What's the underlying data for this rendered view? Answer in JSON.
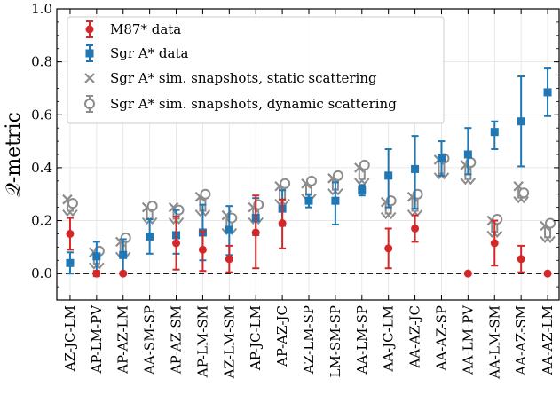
{
  "chart_data": {
    "type": "scatter",
    "ylabel": "𝒬-metric",
    "ylim": [
      -0.1,
      1.0
    ],
    "yticks": [
      0.0,
      0.2,
      0.4,
      0.6,
      0.8,
      1.0
    ],
    "ytick_labels": [
      "0.0",
      "0.2",
      "0.4",
      "0.6",
      "0.8",
      "1.0"
    ],
    "grid": true,
    "reference_line": 0.0,
    "legend_position": "top-left",
    "categories": [
      "AZ-JC-LM",
      "AP-LM-PV",
      "AP-AZ-LM",
      "AA-SM-SP",
      "AP-AZ-SM",
      "AP-LM-SM",
      "AZ-LM-SM",
      "AP-JC-LM",
      "AP-AZ-JC",
      "AZ-LM-SP",
      "LM-SM-SP",
      "AA-LM-SP",
      "AA-JC-LM",
      "AA-AZ-JC",
      "AA-AZ-SP",
      "AA-LM-PV",
      "AA-LM-SM",
      "AA-AZ-SM",
      "AA-AZ-LM"
    ],
    "colors": {
      "m87": "#d62728",
      "sgra": "#1f77b4",
      "sim": "#8c8c8c"
    },
    "series": [
      {
        "name": "M87* data",
        "marker": "circle",
        "values": [
          0.15,
          0.0,
          0.0,
          null,
          0.115,
          0.09,
          0.055,
          0.155,
          0.19,
          null,
          null,
          null,
          0.095,
          0.17,
          null,
          0.0,
          0.115,
          0.055,
          0.0
        ],
        "err_low": [
          0.06,
          0.01,
          0.0,
          null,
          0.1,
          0.08,
          0.05,
          0.135,
          0.095,
          null,
          null,
          null,
          0.075,
          0.05,
          null,
          0.0,
          0.085,
          0.05,
          0.0
        ],
        "err_high": [
          0.06,
          0.01,
          0.0,
          null,
          0.1,
          0.07,
          0.05,
          0.14,
          0.09,
          null,
          null,
          null,
          0.075,
          0.05,
          null,
          0.0,
          0.085,
          0.05,
          0.0
        ]
      },
      {
        "name": "Sgr A* data",
        "marker": "square",
        "values": [
          0.04,
          0.065,
          0.07,
          0.14,
          0.145,
          0.155,
          0.165,
          0.21,
          0.245,
          0.275,
          0.275,
          0.315,
          0.37,
          0.395,
          0.435,
          0.45,
          0.535,
          0.575,
          0.685
        ],
        "err_low": [
          0.04,
          0.06,
          0.065,
          0.065,
          0.07,
          0.105,
          0.095,
          0.065,
          0.065,
          0.025,
          0.09,
          0.02,
          0.12,
          0.15,
          0.065,
          0.075,
          0.065,
          0.17,
          0.09
        ],
        "err_high": [
          0.04,
          0.055,
          0.06,
          0.065,
          0.095,
          0.105,
          0.09,
          0.075,
          0.07,
          0.025,
          0.07,
          0.02,
          0.1,
          0.125,
          0.065,
          0.1,
          0.04,
          0.17,
          0.09
        ]
      },
      {
        "name": "Sgr A* sim. snapshots, static scattering",
        "marker": "x",
        "values": [
          0.28,
          0.08,
          0.12,
          0.25,
          0.25,
          0.29,
          0.22,
          0.25,
          0.33,
          0.34,
          0.36,
          0.4,
          0.27,
          0.29,
          0.43,
          0.41,
          0.2,
          0.33,
          0.18
        ],
        "arrow_to": [
          0.22,
          0.02,
          0.06,
          0.19,
          0.19,
          0.22,
          0.15,
          0.19,
          0.26,
          0.28,
          0.3,
          0.34,
          0.21,
          0.22,
          0.36,
          0.34,
          0.14,
          0.27,
          0.12
        ]
      },
      {
        "name": "Sgr A* sim. snapshots, dynamic scattering",
        "marker": "circle-open",
        "values": [
          0.265,
          0.085,
          0.135,
          0.255,
          0.24,
          0.3,
          0.21,
          0.26,
          0.34,
          0.35,
          0.37,
          0.41,
          0.275,
          0.3,
          0.435,
          0.42,
          0.205,
          0.305,
          0.19
        ]
      }
    ]
  }
}
